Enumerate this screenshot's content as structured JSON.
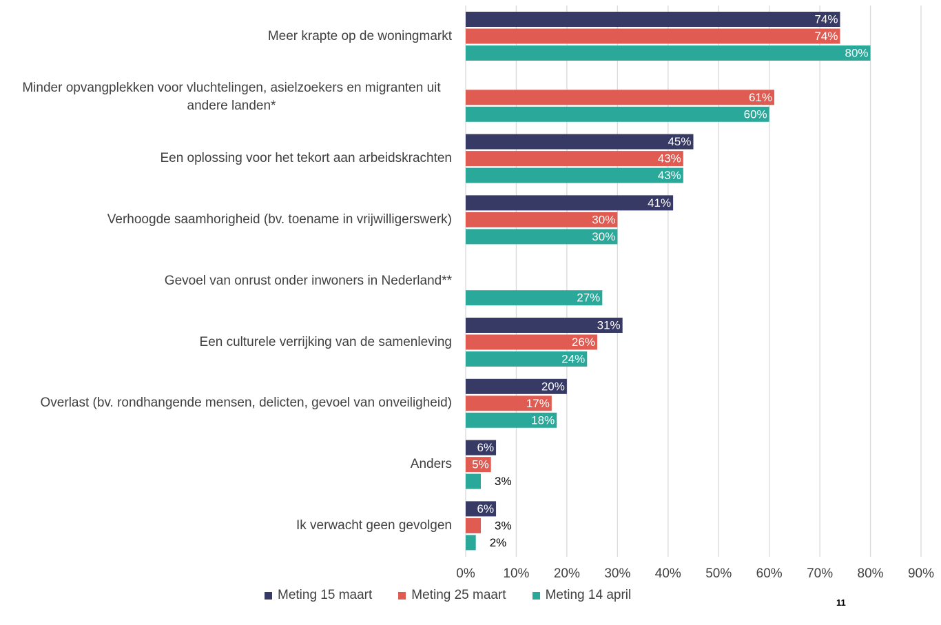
{
  "chart_data": {
    "type": "bar",
    "orientation": "horizontal",
    "categories": [
      "Meer krapte op de woningmarkt",
      "Minder opvangplekken voor vluchtelingen, asielzoekers en migranten uit andere landen*",
      "Een oplossing voor het tekort aan arbeidskrachten",
      "Verhoogde saamhorigheid (bv. toename in vrijwilligerswerk)",
      "Gevoel  van onrust onder inwoners in Nederland**",
      "Een culturele verrijking van de samenleving",
      "Overlast (bv. rondhangende mensen, delicten, gevoel van onveiligheid)",
      "Anders",
      "Ik verwacht geen gevolgen"
    ],
    "series": [
      {
        "name": "Meting 15 maart",
        "color": "#363a64",
        "values": [
          74,
          null,
          45,
          41,
          null,
          31,
          20,
          6,
          6
        ],
        "value_labels": [
          "74%",
          null,
          "45%",
          "41%",
          null,
          "31%",
          "20%",
          "6%",
          "6%"
        ]
      },
      {
        "name": "Meting 25 maart",
        "color": "#e05c52",
        "values": [
          74,
          61,
          43,
          30,
          null,
          26,
          17,
          5,
          3
        ],
        "value_labels": [
          "74%",
          "61%",
          "43%",
          "30%",
          null,
          "26%",
          "17%",
          "5%",
          "3%"
        ]
      },
      {
        "name": "Meting 14 april",
        "color": "#2aa89a",
        "values": [
          80,
          60,
          43,
          30,
          27,
          24,
          18,
          3,
          2
        ],
        "value_labels": [
          "80%",
          "60%",
          "43%",
          "30%",
          "27%",
          "24%",
          "18%",
          "3%",
          "2%"
        ]
      }
    ],
    "xlim": [
      0,
      90
    ],
    "xticks": [
      {
        "value": 0,
        "label": "0%"
      },
      {
        "value": 10,
        "label": "10%"
      },
      {
        "value": 20,
        "label": "20%"
      },
      {
        "value": 30,
        "label": "30%"
      },
      {
        "value": 40,
        "label": "40%"
      },
      {
        "value": 50,
        "label": "50%"
      },
      {
        "value": 60,
        "label": "60%"
      },
      {
        "value": 70,
        "label": "70%"
      },
      {
        "value": 80,
        "label": "80%"
      },
      {
        "value": 90,
        "label": "90%"
      }
    ],
    "grid": true,
    "legend": "bottom",
    "page_number": "11"
  }
}
